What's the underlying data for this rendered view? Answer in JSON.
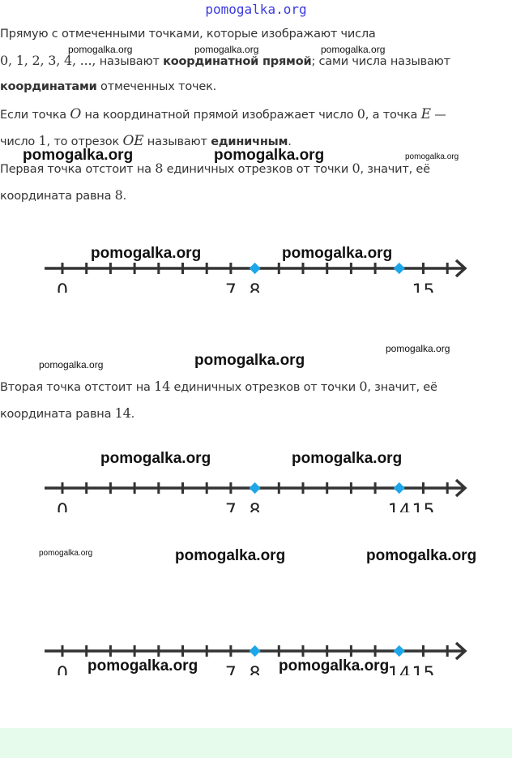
{
  "header_watermark": "pomogalka.org",
  "paragraphs": {
    "p1a": "Прямую с отмеченными точками, которые изображают числа",
    "p1b_math": "0,  1,  2,  3,  4,  ...,",
    "p1b_text": " называют ",
    "p1b_bold": "координатной прямой",
    "p1b_rest": "; сами числа называют",
    "p1c_bold": "координатами",
    "p1c_rest": " отмеченных точек.",
    "p2a_1": "Если точка ",
    "p2a_O": "O",
    "p2a_2": " на координатной прямой изображает число ",
    "p2a_0": "0",
    "p2a_3": ", а точка ",
    "p2a_E": "E",
    "p2a_4": " —",
    "p2b_1": "число ",
    "p2b_1n": "1",
    "p2b_2": ", то отрезок ",
    "p2b_OE": "OE",
    "p2b_3": " называют ",
    "p2b_bold": "единичным",
    "p2b_4": ".",
    "p3a_1": "Первая точка отстоит на ",
    "p3a_n": "8",
    "p3a_2": " единичных отрезков от точки ",
    "p3a_0": "0",
    "p3a_3": ", значит, её",
    "p3b_1": "координата равна ",
    "p3b_n": "8",
    "p3b_2": ".",
    "p4a_1": "Вторая точка отстоит на ",
    "p4a_n": "14",
    "p4a_2": " единичных отрезков от точки ",
    "p4a_0": "0",
    "p4a_3": ", значит, её",
    "p4b_1": "координата равна ",
    "p4b_n": "14",
    "p4b_2": "."
  },
  "number_lines": [
    {
      "ticks": 17,
      "labels": [
        "0",
        "7",
        "8",
        "15"
      ],
      "label_values": [
        0,
        7,
        8,
        15
      ],
      "points": [
        8,
        14
      ]
    },
    {
      "ticks": 17,
      "labels": [
        "0",
        "7",
        "8",
        "14",
        "15"
      ],
      "label_values": [
        0,
        7,
        8,
        14,
        15
      ],
      "points": [
        8,
        14
      ]
    },
    {
      "ticks": 17,
      "labels": [
        "0",
        "7",
        "8",
        "14",
        "15"
      ],
      "label_values": [
        0,
        7,
        8,
        14,
        15
      ],
      "points": [
        8,
        14
      ]
    }
  ],
  "colors": {
    "point": "#1ea7e8",
    "line": "#333333",
    "band": "#e6fbec"
  },
  "watermark": "pomogalka.org"
}
